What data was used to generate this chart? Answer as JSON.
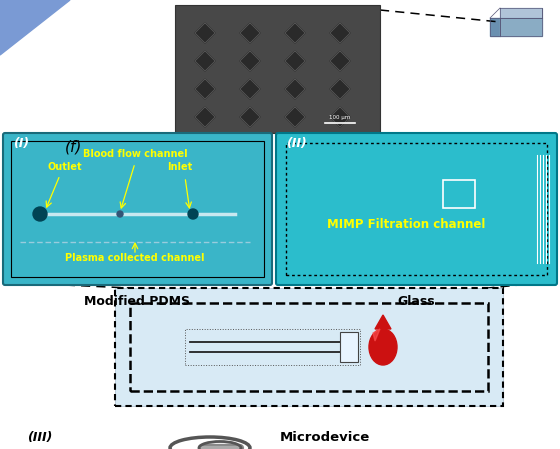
{
  "bg_color": "#ffffff",
  "panel_I_color": "#3ab5c8",
  "panel_II_color": "#2bbdcc",
  "panel_III_color": "#ddeef8",
  "panel_III_outer_color": "#c8dce8",
  "sem_color": "#505050",
  "label_f": "(f)",
  "label_I": "(I)",
  "label_II": "(II)",
  "label_III": "(III)",
  "label_modified_pdms": "Modified PDMS",
  "label_glass": "Glass",
  "label_microdevice": "Microdevice",
  "text_blood_flow": "Blood flow channel",
  "text_outlet": "Outlet",
  "text_inlet": "Inlet",
  "text_plasma": "Plasma collected channel",
  "text_mimp": "MIMP Filtration channel",
  "yellow": "#ffff00",
  "black": "#000000",
  "white": "#ffffff",
  "tri_color": "#7a9ad4",
  "box3d_top": "#b0c4d8",
  "box3d_side": "#8aacc4",
  "box3d_front": "#6a90b0"
}
